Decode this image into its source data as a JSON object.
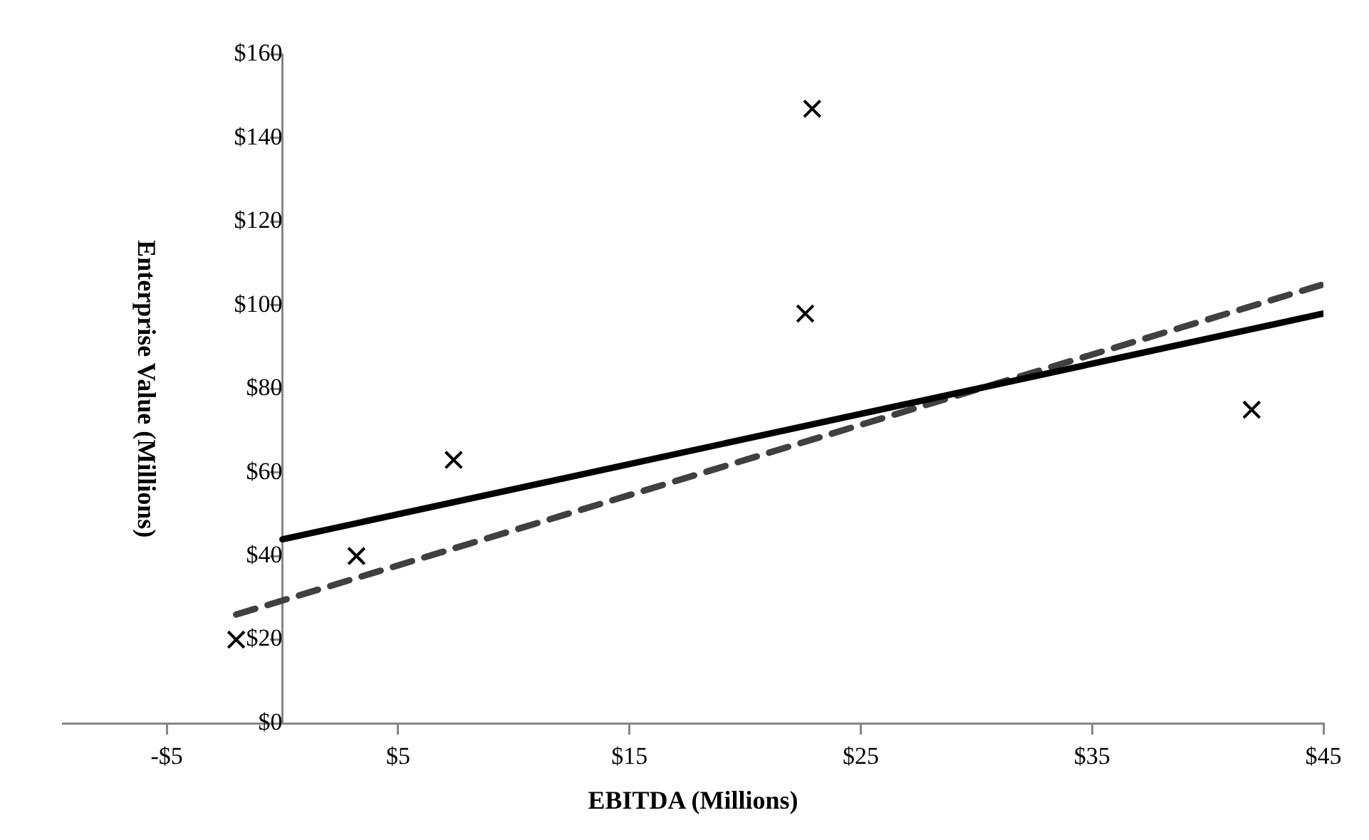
{
  "chart_data": {
    "type": "scatter",
    "xlabel": "EBITDA (Millions)",
    "ylabel": "Enterprise Value (Millions)",
    "xlim": [
      -9.5,
      45
    ],
    "ylim": [
      0,
      160
    ],
    "xticks": [
      {
        "value": -5,
        "label": "-$5"
      },
      {
        "value": 5,
        "label": "$5"
      },
      {
        "value": 15,
        "label": "$15"
      },
      {
        "value": 25,
        "label": "$25"
      },
      {
        "value": 35,
        "label": "$35"
      },
      {
        "value": 45,
        "label": "$45"
      }
    ],
    "yticks": [
      {
        "value": 0,
        "label": "$0"
      },
      {
        "value": 20,
        "label": "$20"
      },
      {
        "value": 40,
        "label": "$40"
      },
      {
        "value": 60,
        "label": "$60"
      },
      {
        "value": 80,
        "label": "$80"
      },
      {
        "value": 100,
        "label": "$100"
      },
      {
        "value": 120,
        "label": "$120"
      },
      {
        "value": 140,
        "label": "$140"
      },
      {
        "value": 160,
        "label": "$160"
      }
    ],
    "grid": false,
    "legend": false,
    "series": [
      {
        "color": "#000000",
        "marker": "cross",
        "x": [
          -2,
          3.2,
          7.4,
          22.6,
          22.9,
          41.9
        ],
        "values": [
          20,
          40,
          63,
          98,
          147,
          75
        ]
      },
      {
        "type": "line",
        "color": "#000000",
        "line_style": "solid",
        "marker": "none",
        "x": [
          0,
          45
        ],
        "values": [
          44,
          98
        ]
      },
      {
        "type": "line",
        "color": "#404040",
        "line_style": "dashed",
        "marker": "none",
        "x": [
          -2,
          45
        ],
        "values": [
          26,
          105
        ]
      }
    ]
  }
}
